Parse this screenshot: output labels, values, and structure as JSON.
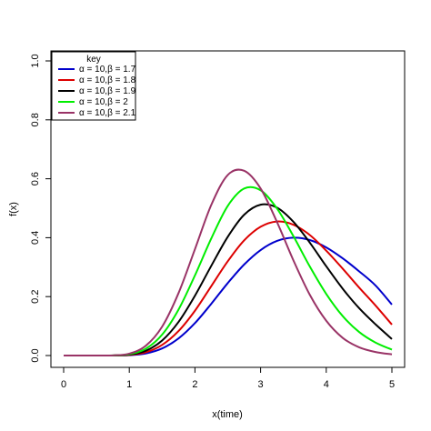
{
  "chart_data": {
    "type": "line",
    "title": "",
    "xlabel": "x(time)",
    "ylabel": "f(x)",
    "xlim": [
      0,
      5
    ],
    "ylim": [
      0,
      1.0
    ],
    "x_ticks": [
      "0",
      "1",
      "2",
      "3",
      "4",
      "5"
    ],
    "y_ticks": [
      "0.0",
      "0.2",
      "0.4",
      "0.6",
      "0.8",
      "1.0"
    ],
    "grid": false,
    "legend": {
      "title": "key",
      "placement": "top-left"
    },
    "x": [
      0,
      0.25,
      0.5,
      0.75,
      1.0,
      1.25,
      1.5,
      1.75,
      2.0,
      2.25,
      2.5,
      2.75,
      3.0,
      3.25,
      3.5,
      3.75,
      4.0,
      4.25,
      4.5,
      4.75,
      5.0
    ],
    "series": [
      {
        "name": "α = 10,β = 1.7",
        "color": "#0000cc",
        "values": [
          0,
          0,
          0,
          0.0001,
          0.0013,
          0.007,
          0.024,
          0.058,
          0.11,
          0.176,
          0.246,
          0.309,
          0.358,
          0.389,
          0.4,
          0.392,
          0.367,
          0.33,
          0.286,
          0.238,
          0.173
        ]
      },
      {
        "name": "α = 10,β = 1.8",
        "color": "#dd0000",
        "values": [
          0,
          0,
          0,
          0.0001,
          0.002,
          0.011,
          0.036,
          0.083,
          0.152,
          0.236,
          0.32,
          0.391,
          0.437,
          0.455,
          0.444,
          0.409,
          0.356,
          0.295,
          0.231,
          0.17,
          0.105
        ]
      },
      {
        "name": "α = 10,β = 1.9",
        "color": "#000000",
        "values": [
          0,
          0,
          0,
          0.0002,
          0.003,
          0.016,
          0.051,
          0.114,
          0.203,
          0.305,
          0.403,
          0.478,
          0.512,
          0.502,
          0.454,
          0.383,
          0.303,
          0.227,
          0.161,
          0.106,
          0.056
        ]
      },
      {
        "name": "α = 10,β = 2",
        "color": "#00ee00",
        "values": [
          0,
          0,
          0,
          0.0003,
          0.0044,
          0.023,
          0.071,
          0.156,
          0.272,
          0.398,
          0.508,
          0.567,
          0.561,
          0.499,
          0.405,
          0.302,
          0.209,
          0.134,
          0.08,
          0.044,
          0.02
        ]
      },
      {
        "name": "α = 10,β = 2.1",
        "color": "#993366",
        "values": [
          0,
          0,
          0,
          0.0005,
          0.0063,
          0.033,
          0.098,
          0.212,
          0.361,
          0.512,
          0.613,
          0.627,
          0.567,
          0.453,
          0.323,
          0.206,
          0.118,
          0.06,
          0.028,
          0.012,
          0.004
        ]
      }
    ]
  }
}
